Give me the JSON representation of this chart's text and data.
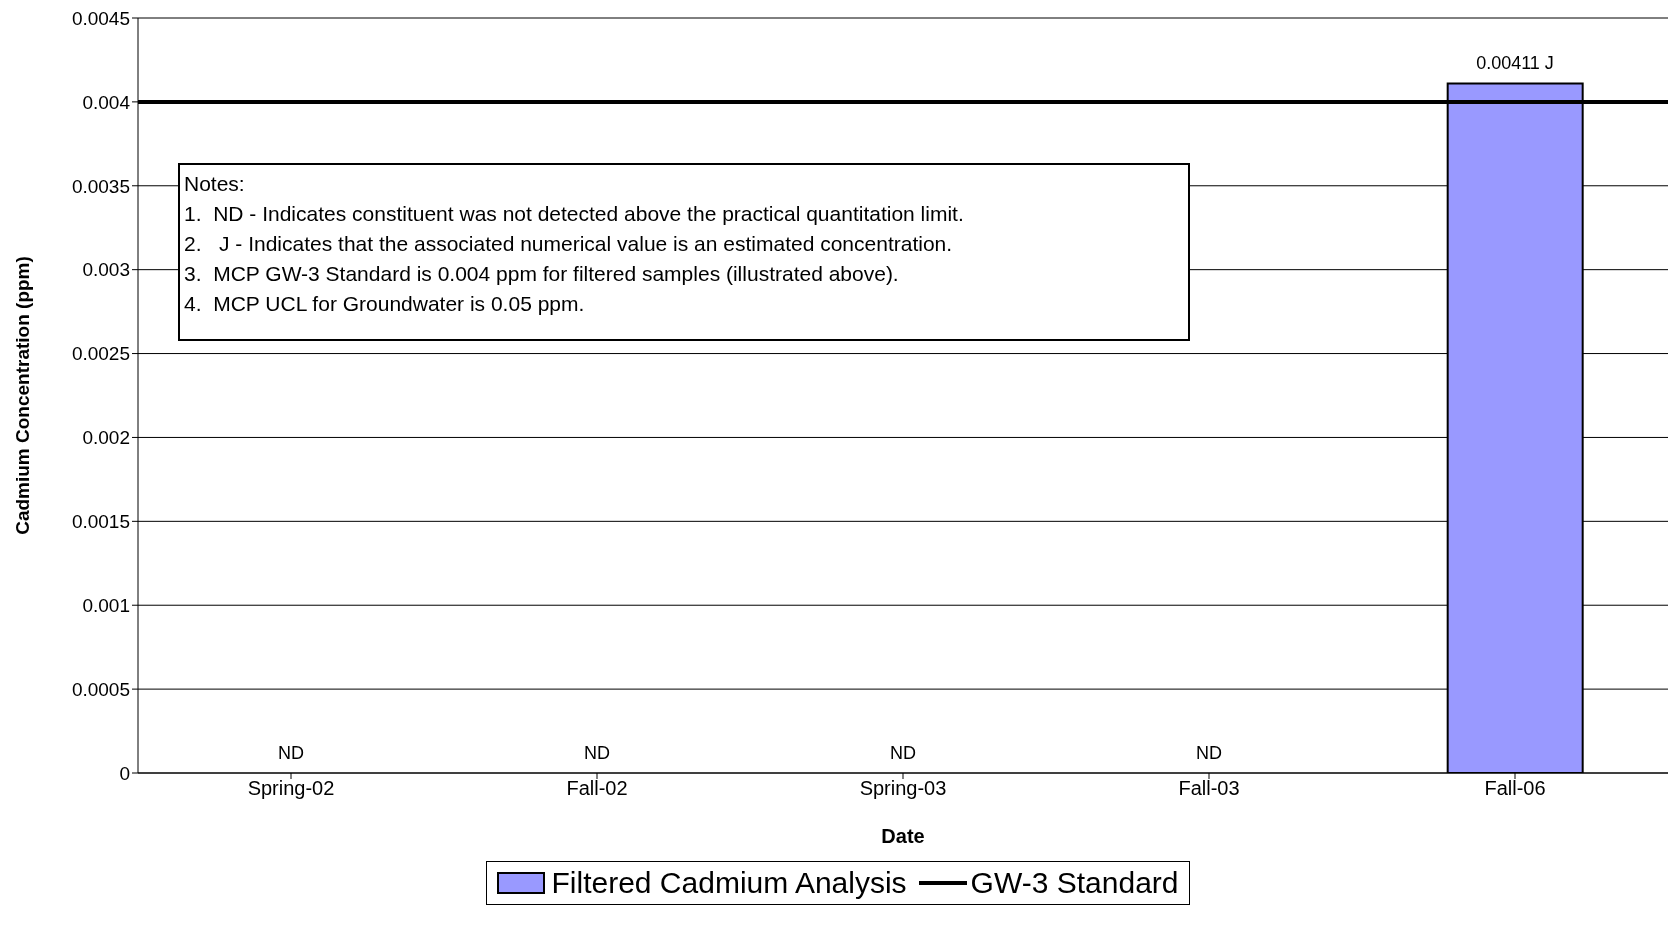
{
  "chart_data": {
    "type": "bar",
    "xlabel": "Date",
    "ylabel": "Cadmium Concentration (ppm)",
    "categories": [
      "Spring-02",
      "Fall-02",
      "Spring-03",
      "Fall-03",
      "Fall-06"
    ],
    "series": [
      {
        "name": "Filtered Cadmium Analysis",
        "color": "#9999ff",
        "values": [
          null,
          null,
          null,
          null,
          0.00411
        ],
        "value_labels": [
          "ND",
          "ND",
          "ND",
          "ND",
          "0.00411 J"
        ]
      }
    ],
    "ref_lines": [
      {
        "axis": "y",
        "value": 0.004,
        "label": "GW-3 Standard",
        "color": "#000000"
      }
    ],
    "ylim": [
      0,
      0.0045
    ],
    "yticks": [
      0,
      0.0005,
      0.001,
      0.0015,
      0.002,
      0.0025,
      0.003,
      0.0035,
      0.004,
      0.0045
    ],
    "grid": "y",
    "legend": "bottom",
    "annotations": [
      "Notes:",
      "1.  ND - Indicates constituent was not detected above the practical quantitation limit.",
      "2.   J - Indicates that the associated numerical value is an estimated concentration.",
      "3.  MCP GW-3 Standard is 0.004 ppm for filtered samples (illustrated above).",
      "4.  MCP UCL for Groundwater is 0.05 ppm."
    ]
  }
}
